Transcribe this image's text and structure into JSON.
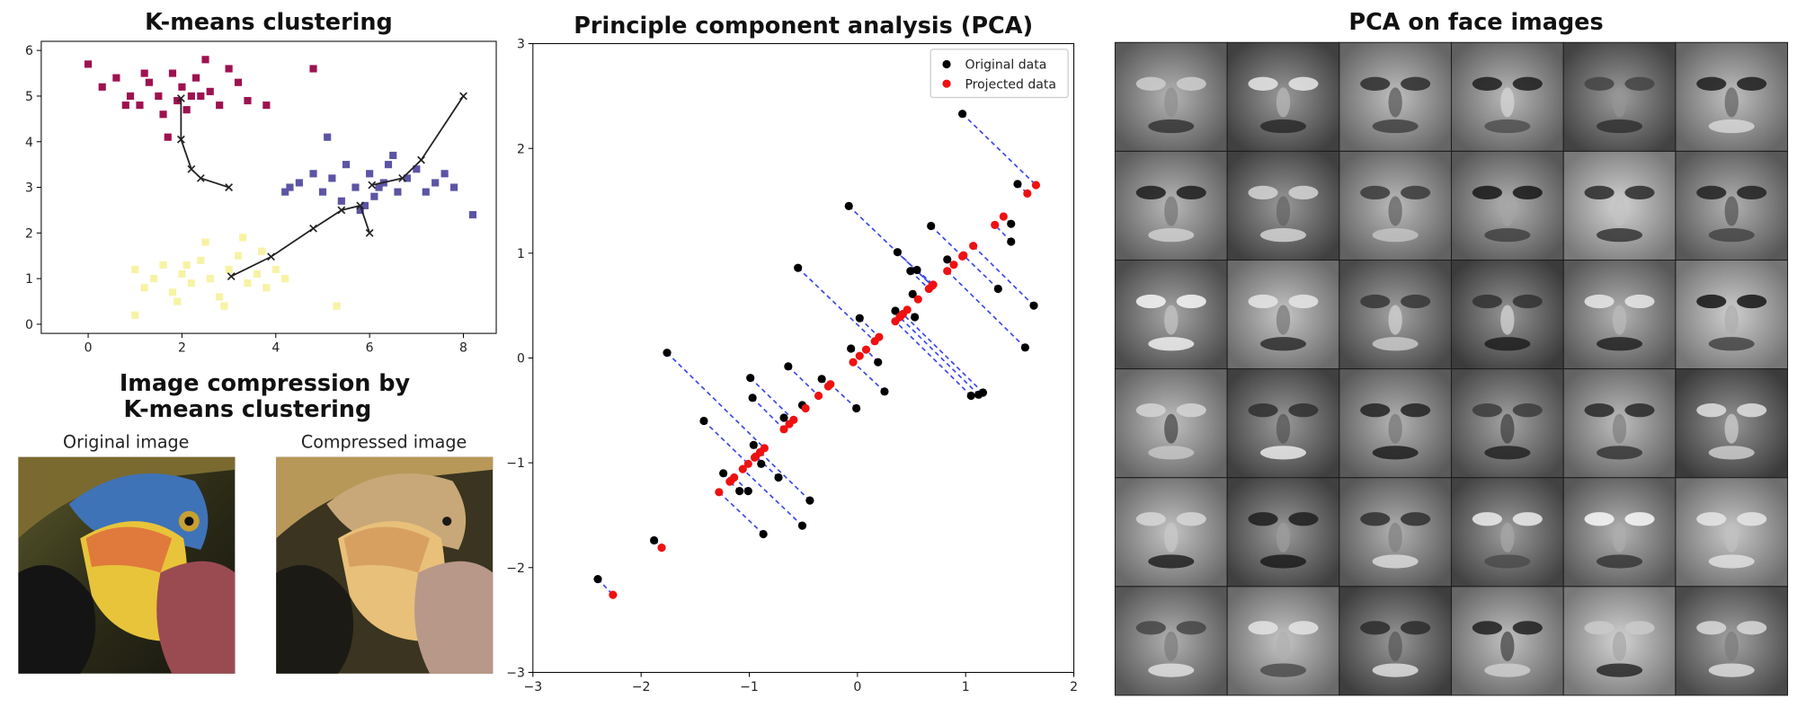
{
  "chart_data": [
    {
      "type": "scatter",
      "title": "K-means clustering",
      "xlim": [
        -1.0,
        8.7
      ],
      "ylim": [
        -0.2,
        6.2
      ],
      "xticks": [
        0,
        2,
        4,
        6,
        8
      ],
      "yticks": [
        0,
        1,
        2,
        3,
        4,
        5,
        6
      ],
      "series": [
        {
          "marker": "s",
          "color": "#9e1250",
          "x": [
            0.0,
            0.3,
            0.6,
            0.9,
            1.1,
            1.3,
            1.5,
            1.6,
            1.8,
            1.9,
            2.0,
            2.1,
            2.3,
            2.4,
            2.6,
            2.8,
            3.0,
            3.2,
            3.4,
            2.5,
            1.2,
            0.8,
            3.8,
            1.7,
            2.2,
            4.8
          ],
          "values": [
            5.7,
            5.2,
            5.4,
            5.0,
            4.8,
            5.3,
            5.0,
            4.6,
            5.5,
            4.9,
            5.2,
            4.7,
            5.4,
            5.0,
            5.1,
            4.8,
            5.6,
            5.3,
            4.9,
            5.8,
            5.5,
            4.8,
            4.8,
            4.1,
            5.0,
            5.6
          ]
        },
        {
          "marker": "s",
          "color": "#5c54a4",
          "x": [
            4.2,
            4.5,
            4.8,
            5.0,
            5.2,
            5.4,
            5.5,
            5.7,
            5.8,
            6.0,
            6.1,
            6.3,
            6.4,
            6.6,
            6.8,
            7.0,
            7.2,
            7.4,
            7.6,
            7.8,
            5.1,
            6.5,
            5.9,
            8.2,
            6.2,
            4.3
          ],
          "values": [
            2.9,
            3.1,
            3.3,
            2.9,
            3.2,
            2.7,
            3.5,
            3.0,
            2.5,
            3.3,
            2.8,
            3.1,
            3.5,
            2.9,
            3.2,
            3.4,
            2.9,
            3.1,
            3.3,
            3.0,
            4.1,
            3.7,
            2.6,
            2.4,
            3.0,
            3.0
          ]
        },
        {
          "marker": "s",
          "color": "#f7f3a4",
          "x": [
            1.0,
            1.2,
            1.4,
            1.6,
            1.8,
            2.0,
            2.2,
            2.4,
            2.6,
            2.8,
            3.0,
            3.2,
            3.4,
            3.6,
            3.8,
            4.0,
            4.2,
            2.5,
            3.3,
            1.9,
            2.9,
            5.3,
            1.0,
            3.7,
            2.1
          ],
          "values": [
            1.2,
            0.8,
            1.0,
            1.3,
            0.7,
            1.1,
            0.9,
            1.4,
            1.0,
            0.6,
            1.2,
            1.5,
            0.9,
            1.1,
            0.8,
            1.2,
            1.0,
            1.8,
            1.9,
            0.5,
            0.4,
            0.4,
            0.2,
            1.6,
            1.3
          ]
        },
        {
          "marker": "x-line",
          "color": "#222222",
          "x": [
            3.0,
            2.4,
            2.2,
            1.98,
            1.98
          ],
          "values": [
            3.0,
            3.2,
            3.4,
            4.05,
            4.95
          ]
        },
        {
          "marker": "x-line",
          "color": "#222222",
          "x": [
            8.0,
            7.1,
            6.7,
            6.05
          ],
          "values": [
            5.0,
            3.6,
            3.2,
            3.05
          ]
        },
        {
          "marker": "x-line",
          "color": "#222222",
          "x": [
            6.0,
            5.8,
            5.4,
            4.8,
            3.9,
            3.05
          ],
          "values": [
            2.0,
            2.6,
            2.5,
            2.1,
            1.48,
            1.05
          ]
        }
      ]
    },
    {
      "type": "scatter",
      "title": "Principle component analysis (PCA)",
      "xlim": [
        -3,
        2
      ],
      "ylim": [
        -3,
        3
      ],
      "xticks": [
        {
          "value": -3,
          "label": "−3"
        },
        {
          "value": -2,
          "label": "−2"
        },
        {
          "value": -1,
          "label": "−1"
        },
        0,
        1,
        2
      ],
      "yticks": [
        {
          "value": -3,
          "label": "−3"
        },
        {
          "value": -2,
          "label": "−2"
        },
        {
          "value": -1,
          "label": "−1"
        },
        0,
        1,
        2,
        3
      ],
      "legend": "upper right",
      "projection_lines": true,
      "projection_line_color": "#3a46e8",
      "series": [
        {
          "name": "Original data",
          "marker": "o",
          "color": "#000000",
          "x": [
            0.97,
            1.48,
            1.42,
            1.42,
            1.63,
            1.55,
            1.3,
            -0.08,
            0.37,
            0.68,
            0.49,
            0.55,
            0.83,
            -0.55,
            0.02,
            0.35,
            0.51,
            0.53,
            1.12,
            1.05,
            1.16,
            -0.06,
            -0.01,
            0.19,
            0.25,
            -1.76,
            -0.64,
            -0.99,
            -0.97,
            -0.33,
            -0.51,
            -0.68,
            -1.42,
            -0.96,
            -0.89,
            -0.73,
            -1.24,
            -1.09,
            -1.01,
            -0.44,
            -0.51,
            -0.87,
            -1.88,
            -2.4
          ],
          "values": [
            2.33,
            1.66,
            1.28,
            1.11,
            0.5,
            0.1,
            0.66,
            1.45,
            1.01,
            1.26,
            0.83,
            0.84,
            0.94,
            0.86,
            0.38,
            0.45,
            0.61,
            0.39,
            -0.35,
            -0.36,
            -0.33,
            0.09,
            -0.48,
            -0.04,
            -0.32,
            0.05,
            -0.08,
            -0.19,
            -0.38,
            -0.2,
            -0.45,
            -0.57,
            -0.6,
            -0.83,
            -1.01,
            -1.14,
            -1.1,
            -1.27,
            -1.27,
            -1.36,
            -1.6,
            -1.68,
            -1.74,
            -2.11
          ]
        },
        {
          "name": "Projected data",
          "marker": "o",
          "color": "#ee1111",
          "x": [
            1.65,
            1.57,
            1.35,
            1.27,
            1.07,
            0.83,
            0.98,
            0.69,
            0.69,
            0.97,
            0.66,
            0.7,
            0.89,
            0.16,
            0.2,
            0.4,
            0.56,
            0.46,
            0.39,
            0.35,
            0.42,
            0.02,
            -0.25,
            0.08,
            -0.04,
            -0.86,
            -0.36,
            -0.59,
            -0.68,
            -0.27,
            -0.48,
            -0.63,
            -1.01,
            -0.9,
            -0.95,
            -0.94,
            -1.17,
            -1.18,
            -1.14,
            -0.9,
            -1.06,
            -1.28,
            -1.81,
            -2.26
          ],
          "values": [
            1.65,
            1.57,
            1.35,
            1.27,
            1.07,
            0.83,
            0.98,
            0.69,
            0.69,
            0.97,
            0.66,
            0.7,
            0.89,
            0.16,
            0.2,
            0.4,
            0.56,
            0.46,
            0.39,
            0.35,
            0.42,
            0.02,
            -0.25,
            0.08,
            -0.04,
            -0.86,
            -0.36,
            -0.59,
            -0.68,
            -0.27,
            -0.48,
            -0.63,
            -1.01,
            -0.9,
            -0.95,
            -0.94,
            -1.17,
            -1.18,
            -1.14,
            -0.9,
            -1.06,
            -1.28,
            -1.81,
            -2.26
          ]
        }
      ]
    }
  ],
  "image_compression": {
    "title": [
      "Image compression by",
      "K-means clustering"
    ],
    "original_label": "Original image",
    "compressed_label": "Compressed image"
  },
  "faces": {
    "title": "PCA on face images"
  }
}
